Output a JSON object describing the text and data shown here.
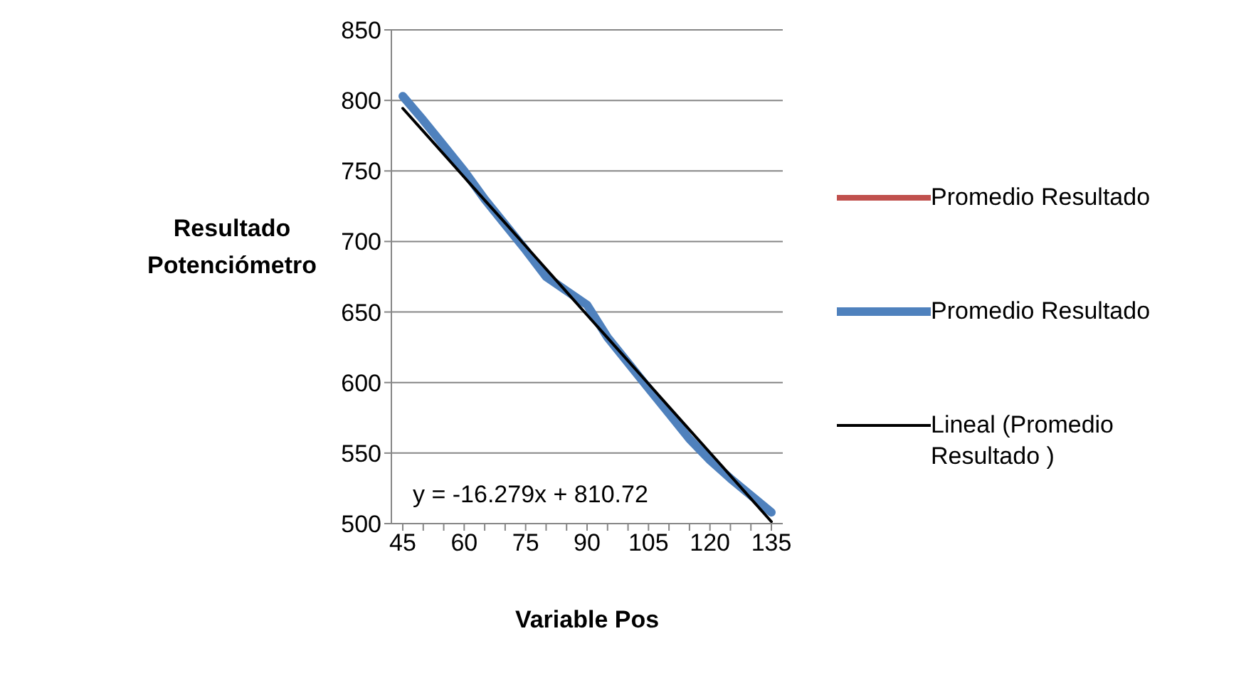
{
  "chart_data": {
    "type": "line",
    "xlabel": "Variable Pos",
    "ylabel": "Resultado Potenciómetro",
    "categories": [
      "45",
      null,
      null,
      "60",
      null,
      null,
      "75",
      null,
      null,
      "90",
      null,
      null,
      "105",
      null,
      null,
      "120",
      null,
      null,
      "135"
    ],
    "series": [
      {
        "name": "Promedio Resultado",
        "color": "#c0504d",
        "values": [
          null,
          null,
          null,
          null,
          null,
          null,
          null,
          null,
          null,
          null,
          null,
          null,
          null,
          null,
          null,
          null,
          null,
          null,
          null
        ]
      },
      {
        "name": "Promedio Resultado",
        "color": "#4f81bd",
        "values": [
          803,
          786,
          768,
          750,
          730,
          712,
          694,
          675,
          665,
          655,
          632,
          614,
          596,
          578,
          560,
          545,
          532,
          520,
          508
        ]
      },
      {
        "name": "Lineal (Promedio Resultado )",
        "color": "#000000",
        "type": "line",
        "values": [
          794.4,
          778.2,
          761.9,
          745.6,
          729.3,
          713.1,
          696.8,
          680.5,
          664.2,
          647.9,
          631.7,
          615.4,
          599.1,
          582.8,
          566.5,
          550.3,
          534.0,
          517.7,
          501.4
        ]
      }
    ],
    "ylim": [
      500,
      850
    ],
    "yticks": [
      500,
      550,
      600,
      650,
      700,
      750,
      800,
      850
    ],
    "grid": "y",
    "legend": "right",
    "marker": "none",
    "line_style": "solid",
    "annotations": [
      "y = -16.279x + 810.72"
    ]
  }
}
